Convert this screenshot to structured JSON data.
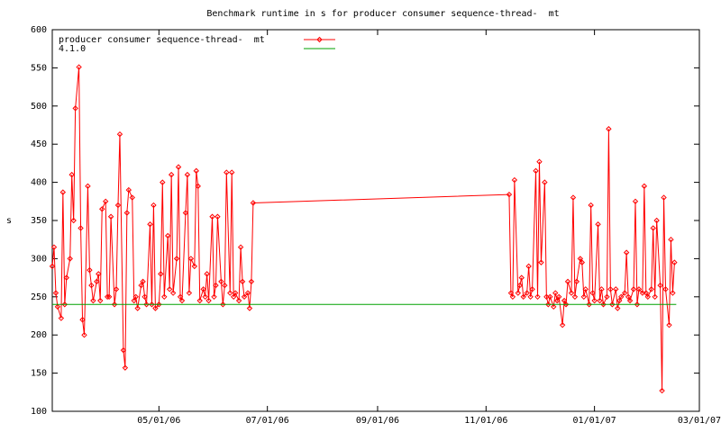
{
  "chart_data": {
    "type": "line",
    "title": "Benchmark runtime in s for producer consumer sequence-thread-  mt",
    "y_label": "s",
    "xlim": [
      "2006-03-02",
      "2007-03-01"
    ],
    "xticks": [
      {
        "value": "2006-05-01",
        "label": "05/01/06"
      },
      {
        "value": "2006-07-01",
        "label": "07/01/06"
      },
      {
        "value": "2006-09-01",
        "label": "09/01/06"
      },
      {
        "value": "2006-11-01",
        "label": "11/01/06"
      },
      {
        "value": "2007-01-01",
        "label": "01/01/07"
      },
      {
        "value": "2007-03-01",
        "label": "03/01/07"
      }
    ],
    "ylim": [
      100,
      600
    ],
    "yticks": [
      100,
      150,
      200,
      250,
      300,
      350,
      400,
      450,
      500,
      550,
      600
    ],
    "legend": "top-left",
    "series": [
      {
        "name": "producer consumer sequence-thread-  mt",
        "color": "#ff0000",
        "markers": true,
        "x": [
          "2006-03-02",
          "2006-03-03",
          "2006-03-04",
          "2006-03-05",
          "2006-03-07",
          "2006-03-08",
          "2006-03-09",
          "2006-03-10",
          "2006-03-12",
          "2006-03-13",
          "2006-03-14",
          "2006-03-15",
          "2006-03-17",
          "2006-03-18",
          "2006-03-19",
          "2006-03-20",
          "2006-03-22",
          "2006-03-23",
          "2006-03-24",
          "2006-03-25",
          "2006-03-27",
          "2006-03-28",
          "2006-03-29",
          "2006-03-30",
          "2006-04-01",
          "2006-04-02",
          "2006-04-03",
          "2006-04-04",
          "2006-04-06",
          "2006-04-07",
          "2006-04-08",
          "2006-04-09",
          "2006-04-11",
          "2006-04-12",
          "2006-04-13",
          "2006-04-14",
          "2006-04-16",
          "2006-04-17",
          "2006-04-18",
          "2006-04-19",
          "2006-04-21",
          "2006-04-22",
          "2006-04-23",
          "2006-04-24",
          "2006-04-26",
          "2006-04-27",
          "2006-04-28",
          "2006-04-29",
          "2006-05-01",
          "2006-05-02",
          "2006-05-03",
          "2006-05-04",
          "2006-05-06",
          "2006-05-07",
          "2006-05-08",
          "2006-05-09",
          "2006-05-11",
          "2006-05-12",
          "2006-05-13",
          "2006-05-14",
          "2006-05-16",
          "2006-05-17",
          "2006-05-18",
          "2006-05-19",
          "2006-05-21",
          "2006-05-22",
          "2006-05-23",
          "2006-05-24",
          "2006-05-26",
          "2006-05-27",
          "2006-05-28",
          "2006-05-29",
          "2006-05-31",
          "2006-06-01",
          "2006-06-02",
          "2006-06-03",
          "2006-06-05",
          "2006-06-06",
          "2006-06-07",
          "2006-06-08",
          "2006-06-10",
          "2006-06-11",
          "2006-06-12",
          "2006-06-13",
          "2006-06-15",
          "2006-06-16",
          "2006-06-17",
          "2006-06-18",
          "2006-06-20",
          "2006-06-21",
          "2006-06-22",
          "2006-06-23",
          "2006-11-14",
          "2006-11-15",
          "2006-11-16",
          "2006-11-17",
          "2006-11-19",
          "2006-11-20",
          "2006-11-21",
          "2006-11-22",
          "2006-11-24",
          "2006-11-25",
          "2006-11-26",
          "2006-11-27",
          "2006-11-29",
          "2006-11-30",
          "2006-12-01",
          "2006-12-02",
          "2006-12-04",
          "2006-12-05",
          "2006-12-06",
          "2006-12-07",
          "2006-12-09",
          "2006-12-10",
          "2006-12-11",
          "2006-12-12",
          "2006-12-14",
          "2006-12-15",
          "2006-12-16",
          "2006-12-17",
          "2006-12-19",
          "2006-12-20",
          "2006-12-21",
          "2006-12-22",
          "2006-12-24",
          "2006-12-25",
          "2006-12-26",
          "2006-12-27",
          "2006-12-29",
          "2006-12-30",
          "2006-12-31",
          "2007-01-01",
          "2007-01-03",
          "2007-01-04",
          "2007-01-05",
          "2007-01-06",
          "2007-01-08",
          "2007-01-09",
          "2007-01-10",
          "2007-01-11",
          "2007-01-13",
          "2007-01-14",
          "2007-01-15",
          "2007-01-16",
          "2007-01-18",
          "2007-01-19",
          "2007-01-20",
          "2007-01-21",
          "2007-01-23",
          "2007-01-24",
          "2007-01-25",
          "2007-01-26",
          "2007-01-28",
          "2007-01-29",
          "2007-01-30",
          "2007-01-31",
          "2007-02-02",
          "2007-02-03",
          "2007-02-04",
          "2007-02-05",
          "2007-02-07",
          "2007-02-08",
          "2007-02-09",
          "2007-02-10",
          "2007-02-12",
          "2007-02-13",
          "2007-02-14",
          "2007-02-15"
        ],
        "values": [
          290,
          315,
          255,
          237,
          222,
          387,
          240,
          275,
          300,
          410,
          350,
          497,
          551,
          340,
          220,
          200,
          395,
          285,
          265,
          245,
          270,
          280,
          245,
          365,
          375,
          250,
          250,
          355,
          240,
          260,
          370,
          463,
          180,
          157,
          360,
          390,
          380,
          245,
          250,
          235,
          265,
          270,
          250,
          240,
          345,
          240,
          370,
          235,
          240,
          280,
          400,
          250,
          330,
          260,
          410,
          255,
          300,
          420,
          250,
          245,
          360,
          410,
          255,
          300,
          290,
          415,
          395,
          245,
          260,
          250,
          280,
          245,
          355,
          250,
          265,
          355,
          270,
          240,
          265,
          413,
          255,
          413,
          250,
          255,
          245,
          315,
          270,
          250,
          255,
          235,
          270,
          373,
          384,
          255,
          250,
          403,
          255,
          265,
          275,
          250,
          255,
          290,
          250,
          260,
          415,
          250,
          427,
          295,
          400,
          250,
          240,
          250,
          237,
          255,
          245,
          250,
          213,
          245,
          240,
          270,
          255,
          380,
          250,
          270,
          300,
          295,
          250,
          260,
          240,
          370,
          255,
          245,
          345,
          245,
          260,
          240,
          250,
          470,
          260,
          240,
          260,
          235,
          245,
          250,
          255,
          308,
          250,
          245,
          260,
          375,
          240,
          260,
          255,
          395,
          255,
          250,
          260,
          340,
          250,
          350,
          265,
          127,
          380,
          260,
          213,
          325,
          255,
          295
        ]
      },
      {
        "name": "4.1.0",
        "color": "#00a000",
        "markers": false,
        "x": [
          "2006-03-02",
          "2007-02-16"
        ],
        "values": [
          240,
          240
        ]
      }
    ]
  }
}
